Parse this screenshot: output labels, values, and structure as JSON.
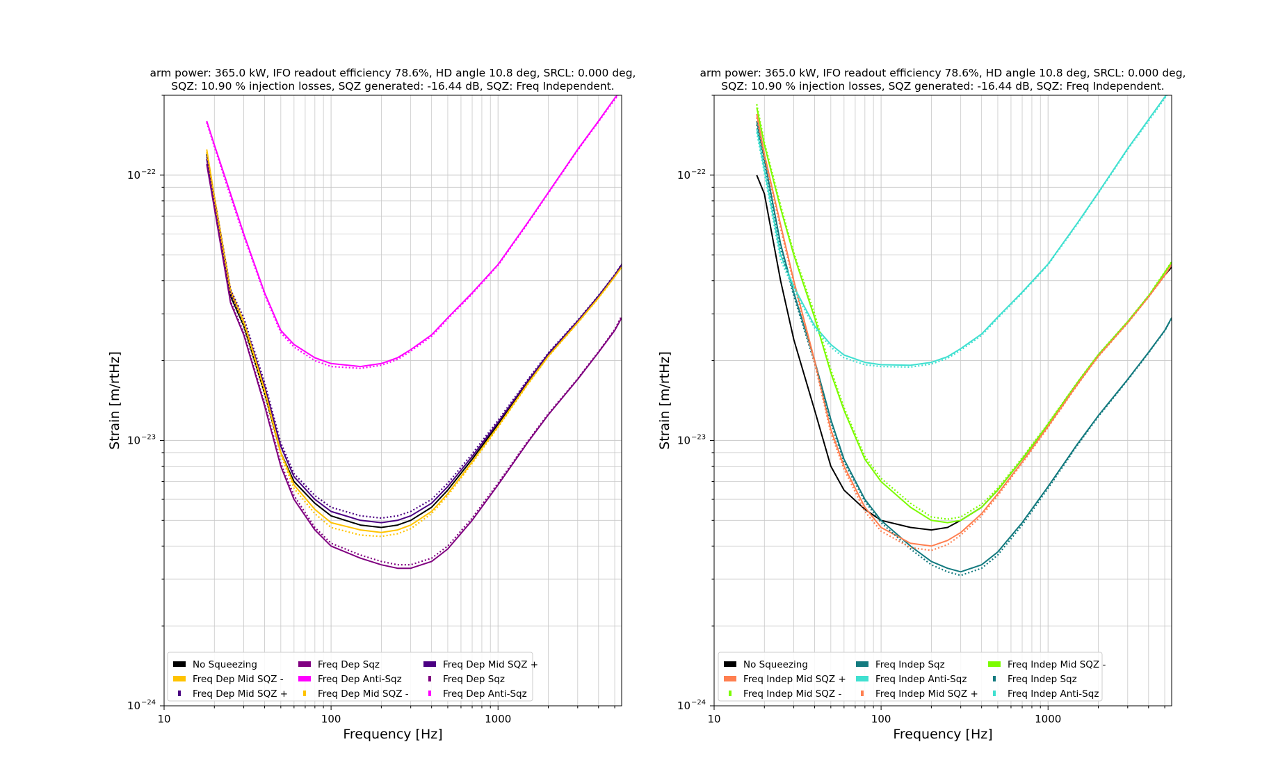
{
  "chart_data": [
    {
      "type": "line",
      "panel": "left",
      "title_line1": "arm power: 365.0 kW, IFO readout efficiency 78.6%, HD angle 10.8 deg, SRCL: 0.000 deg,",
      "title_line2": "SQZ: 10.90 % injection losses, SQZ generated: -16.44 dB, SQZ: Freq Independent.",
      "xlabel": "Frequency [Hz]",
      "ylabel": "Strain [m/rtHz]",
      "xscale": "log",
      "yscale": "log",
      "xlim": [
        10,
        5500
      ],
      "ylim": [
        1e-24,
        2e-22
      ],
      "x_ticks": [
        {
          "value": 10,
          "label": "10"
        },
        {
          "value": 100,
          "label": "100"
        },
        {
          "value": 1000,
          "label": "1000"
        }
      ],
      "y_ticks": [
        {
          "value": 1e-24,
          "label": "10",
          "exp": "−24"
        },
        {
          "value": 1e-23,
          "label": "10",
          "exp": "−23"
        },
        {
          "value": 1e-22,
          "label": "10",
          "exp": "−22"
        }
      ],
      "grid": true,
      "legend_position": "lower-left",
      "legend_columns": 3,
      "x_points": [
        18,
        20,
        25,
        30,
        40,
        50,
        60,
        80,
        100,
        150,
        200,
        250,
        300,
        400,
        500,
        700,
        1000,
        1500,
        2000,
        3000,
        4000,
        5000,
        5500
      ],
      "series": [
        {
          "name": "No Squeezing",
          "color": "#000000",
          "style": "solid",
          "legend_marker": "bar",
          "values": [
            1.2e-22,
            8e-23,
            3.5e-23,
            2.7e-23,
            1.5e-23,
            9e-24,
            7e-24,
            5.8e-24,
            5.2e-24,
            4.8e-24,
            4.7e-24,
            4.8e-24,
            5e-24,
            5.6e-24,
            6.5e-24,
            8.5e-24,
            1.15e-23,
            1.65e-23,
            2.1e-23,
            2.8e-23,
            3.5e-23,
            4.2e-23,
            4.5e-23
          ]
        },
        {
          "name": "Freq Dep Sqz",
          "color": "#800080",
          "style": "solid",
          "legend_marker": "bar",
          "values": [
            1.1e-22,
            7.5e-23,
            3.3e-23,
            2.5e-23,
            1.35e-23,
            8e-24,
            6e-24,
            4.6e-24,
            4e-24,
            3.6e-24,
            3.4e-24,
            3.3e-24,
            3.3e-24,
            3.5e-24,
            3.9e-24,
            5e-24,
            6.8e-24,
            9.8e-24,
            1.25e-23,
            1.7e-23,
            2.15e-23,
            2.6e-23,
            2.9e-23
          ]
        },
        {
          "name": "Freq Dep Mid SQZ +",
          "color": "#4b0082",
          "style": "solid",
          "legend_marker": "bar",
          "values": [
            1.15e-22,
            8e-23,
            3.6e-23,
            2.8e-23,
            1.6e-23,
            9.5e-24,
            7.3e-24,
            6e-24,
            5.4e-24,
            5e-24,
            4.9e-24,
            5e-24,
            5.2e-24,
            5.8e-24,
            6.7e-24,
            8.7e-24,
            1.17e-23,
            1.67e-23,
            2.12e-23,
            2.82e-23,
            3.5e-23,
            4.2e-23,
            4.6e-23
          ]
        },
        {
          "name": "Freq Dep Mid SQZ -",
          "color": "#ffc300",
          "style": "solid",
          "legend_marker": "bar",
          "values": [
            1.25e-22,
            8.3e-23,
            3.7e-23,
            2.8e-23,
            1.55e-23,
            9e-24,
            6.8e-24,
            5.5e-24,
            4.9e-24,
            4.6e-24,
            4.5e-24,
            4.6e-24,
            4.8e-24,
            5.4e-24,
            6.3e-24,
            8.3e-24,
            1.13e-23,
            1.63e-23,
            2.08e-23,
            2.78e-23,
            3.45e-23,
            4.15e-23,
            4.5e-23
          ]
        },
        {
          "name": "Freq Dep Anti-Sqz",
          "color": "#ff00ff",
          "style": "solid",
          "legend_marker": "bar",
          "values": [
            1.6e-22,
            1.3e-22,
            8.5e-23,
            6e-23,
            3.6e-23,
            2.6e-23,
            2.3e-23,
            2.05e-23,
            1.95e-23,
            1.9e-23,
            1.95e-23,
            2.05e-23,
            2.2e-23,
            2.5e-23,
            2.9e-23,
            3.6e-23,
            4.6e-23,
            6.6e-23,
            8.6e-23,
            1.25e-22,
            1.6e-22,
            1.95e-22,
            2.1e-22
          ]
        },
        {
          "name": "Freq Dep Sqz",
          "color": "#800080",
          "style": "dotted",
          "legend_marker": "dot",
          "values": [
            1.15e-22,
            7.8e-23,
            3.35e-23,
            2.55e-23,
            1.38e-23,
            8.2e-24,
            6.2e-24,
            4.7e-24,
            4.1e-24,
            3.7e-24,
            3.5e-24,
            3.4e-24,
            3.4e-24,
            3.6e-24,
            4e-24,
            5.1e-24,
            6.9e-24,
            9.9e-24,
            1.26e-23,
            1.71e-23,
            2.16e-23,
            2.62e-23,
            2.95e-23
          ]
        },
        {
          "name": "Freq Dep Mid SQZ +",
          "color": "#4b0082",
          "style": "dotted",
          "legend_marker": "dot",
          "values": [
            1.18e-22,
            8.2e-23,
            3.7e-23,
            2.9e-23,
            1.65e-23,
            9.8e-24,
            7.5e-24,
            6.2e-24,
            5.6e-24,
            5.2e-24,
            5.1e-24,
            5.2e-24,
            5.4e-24,
            6e-24,
            6.9e-24,
            8.9e-24,
            1.19e-23,
            1.69e-23,
            2.14e-23,
            2.84e-23,
            3.52e-23,
            4.22e-23,
            4.62e-23
          ]
        },
        {
          "name": "Freq Dep Mid SQZ -",
          "color": "#ffc300",
          "style": "dotted",
          "legend_marker": "dot",
          "values": [
            1.22e-22,
            8.1e-23,
            3.6e-23,
            2.75e-23,
            1.5e-23,
            8.8e-24,
            6.6e-24,
            5.3e-24,
            4.7e-24,
            4.4e-24,
            4.35e-24,
            4.45e-24,
            4.65e-24,
            5.3e-24,
            6.2e-24,
            8.2e-24,
            1.12e-23,
            1.62e-23,
            2.07e-23,
            2.77e-23,
            3.44e-23,
            4.14e-23,
            4.48e-23
          ]
        },
        {
          "name": "Freq Dep Anti-Sqz",
          "color": "#ff00ff",
          "style": "dotted",
          "legend_marker": "dot",
          "values": [
            1.58e-22,
            1.28e-22,
            8.3e-23,
            5.9e-23,
            3.55e-23,
            2.55e-23,
            2.25e-23,
            2e-23,
            1.9e-23,
            1.87e-23,
            1.92e-23,
            2.02e-23,
            2.17e-23,
            2.47e-23,
            2.87e-23,
            3.57e-23,
            4.57e-23,
            6.55e-23,
            8.55e-23,
            1.24e-22,
            1.59e-22,
            1.93e-22,
            2.08e-22
          ]
        }
      ],
      "legend_order": [
        0,
        3,
        6,
        1,
        4,
        7,
        2,
        5,
        8
      ]
    },
    {
      "type": "line",
      "panel": "right",
      "title_line1": "arm power: 365.0 kW, IFO readout efficiency 78.6%, HD angle 10.8 deg, SRCL: 0.000 deg,",
      "title_line2": "SQZ: 10.90 % injection losses, SQZ generated: -16.44 dB, SQZ: Freq Independent.",
      "xlabel": "Frequency [Hz]",
      "ylabel": "Strain [m/rtHz]",
      "xscale": "log",
      "yscale": "log",
      "xlim": [
        10,
        5500
      ],
      "ylim": [
        1e-24,
        2e-22
      ],
      "x_ticks": [
        {
          "value": 10,
          "label": "10"
        },
        {
          "value": 100,
          "label": "100"
        },
        {
          "value": 1000,
          "label": "1000"
        }
      ],
      "y_ticks": [
        {
          "value": 1e-24,
          "label": "10",
          "exp": "−24"
        },
        {
          "value": 1e-23,
          "label": "10",
          "exp": "−23"
        },
        {
          "value": 1e-22,
          "label": "10",
          "exp": "−22"
        }
      ],
      "grid": true,
      "legend_position": "lower-left",
      "legend_columns": 3,
      "x_points": [
        18,
        20,
        25,
        30,
        40,
        50,
        60,
        80,
        100,
        150,
        200,
        250,
        300,
        400,
        500,
        700,
        1000,
        1500,
        2000,
        3000,
        4000,
        5000,
        5500
      ],
      "series": [
        {
          "name": "No Squeezing",
          "color": "#000000",
          "style": "solid",
          "legend_marker": "bar",
          "values": [
            1e-22,
            8.5e-23,
            4e-23,
            2.4e-23,
            1.3e-23,
            8e-24,
            6.5e-24,
            5.5e-24,
            5e-24,
            4.7e-24,
            4.6e-24,
            4.7e-24,
            5e-24,
            5.6e-24,
            6.5e-24,
            8.5e-24,
            1.15e-23,
            1.65e-23,
            2.1e-23,
            2.8e-23,
            3.5e-23,
            4.2e-23,
            4.5e-23
          ]
        },
        {
          "name": "Freq Indep Sqz",
          "color": "#137a7f",
          "style": "solid",
          "legend_marker": "bar",
          "values": [
            1.6e-22,
            1.15e-22,
            5.5e-23,
            3.6e-23,
            2e-23,
            1.2e-23,
            8.5e-24,
            6e-24,
            5e-24,
            4e-24,
            3.5e-24,
            3.3e-24,
            3.2e-24,
            3.4e-24,
            3.8e-24,
            4.9e-24,
            6.7e-24,
            9.7e-24,
            1.24e-23,
            1.7e-23,
            2.15e-23,
            2.6e-23,
            2.9e-23
          ]
        },
        {
          "name": "Freq Indep Mid SQZ -",
          "color": "#7cfc00",
          "style": "solid",
          "legend_marker": "bar",
          "values": [
            1.8e-22,
            1.3e-22,
            7.5e-23,
            5e-23,
            2.9e-23,
            1.8e-23,
            1.3e-23,
            8.5e-24,
            7e-24,
            5.6e-24,
            5e-24,
            4.9e-24,
            5e-24,
            5.6e-24,
            6.5e-24,
            8.5e-24,
            1.15e-23,
            1.65e-23,
            2.1e-23,
            2.8e-23,
            3.5e-23,
            4.3e-23,
            4.7e-23
          ]
        },
        {
          "name": "Freq Indep Mid SQZ +",
          "color": "#ff7f50",
          "style": "solid",
          "legend_marker": "bar",
          "values": [
            1.7e-22,
            1.2e-22,
            6.5e-23,
            4e-23,
            2e-23,
            1.1e-23,
            8e-24,
            5.6e-24,
            4.7e-24,
            4.1e-24,
            4e-24,
            4.2e-24,
            4.5e-24,
            5.3e-24,
            6.3e-24,
            8.3e-24,
            1.13e-23,
            1.63e-23,
            2.08e-23,
            2.78e-23,
            3.48e-23,
            4.2e-23,
            4.6e-23
          ]
        },
        {
          "name": "Freq Indep Anti-Sqz",
          "color": "#40e0d0",
          "style": "solid",
          "legend_marker": "bar",
          "values": [
            1.5e-22,
            1.05e-22,
            5e-23,
            3.8e-23,
            2.7e-23,
            2.3e-23,
            2.1e-23,
            1.97e-23,
            1.93e-23,
            1.92e-23,
            1.97e-23,
            2.07e-23,
            2.22e-23,
            2.52e-23,
            2.92e-23,
            3.62e-23,
            4.62e-23,
            6.6e-23,
            8.6e-23,
            1.26e-22,
            1.62e-22,
            1.97e-22,
            2.12e-22
          ]
        },
        {
          "name": "Freq Indep Sqz",
          "color": "#137a7f",
          "style": "dotted",
          "legend_marker": "dot",
          "values": [
            1.55e-22,
            1.12e-22,
            5.3e-23,
            3.5e-23,
            1.95e-23,
            1.17e-23,
            8.3e-24,
            5.9e-24,
            4.9e-24,
            3.9e-24,
            3.4e-24,
            3.2e-24,
            3.1e-24,
            3.3e-24,
            3.7e-24,
            4.8e-24,
            6.6e-24,
            9.6e-24,
            1.23e-23,
            1.69e-23,
            2.14e-23,
            2.59e-23,
            2.88e-23
          ]
        },
        {
          "name": "Freq Indep Mid SQZ -",
          "color": "#7cfc00",
          "style": "dotted",
          "legend_marker": "dot",
          "values": [
            1.85e-22,
            1.33e-22,
            7.7e-23,
            5.1e-23,
            3e-23,
            1.85e-23,
            1.33e-23,
            8.7e-24,
            7.2e-24,
            5.8e-24,
            5.15e-24,
            5.05e-24,
            5.15e-24,
            5.75e-24,
            6.6e-24,
            8.6e-24,
            1.16e-23,
            1.66e-23,
            2.11e-23,
            2.81e-23,
            3.52e-23,
            4.32e-23,
            4.72e-23
          ]
        },
        {
          "name": "Freq Indep Mid SQZ +",
          "color": "#ff7f50",
          "style": "dotted",
          "legend_marker": "dot",
          "values": [
            1.65e-22,
            1.17e-22,
            6.3e-23,
            3.9e-23,
            1.95e-23,
            1.07e-23,
            7.8e-24,
            5.4e-24,
            4.55e-24,
            3.95e-24,
            3.85e-24,
            4.05e-24,
            4.4e-24,
            5.2e-24,
            6.2e-24,
            8.2e-24,
            1.12e-23,
            1.62e-23,
            2.07e-23,
            2.77e-23,
            3.47e-23,
            4.18e-23,
            4.58e-23
          ]
        },
        {
          "name": "Freq Indep Anti-Sqz",
          "color": "#40e0d0",
          "style": "dotted",
          "legend_marker": "dot",
          "values": [
            1.45e-22,
            1.02e-22,
            4.8e-23,
            3.7e-23,
            2.65e-23,
            2.25e-23,
            2.05e-23,
            1.93e-23,
            1.9e-23,
            1.89e-23,
            1.94e-23,
            2.04e-23,
            2.19e-23,
            2.49e-23,
            2.89e-23,
            3.59e-23,
            4.59e-23,
            6.55e-23,
            8.55e-23,
            1.25e-22,
            1.6e-22,
            1.95e-22,
            2.1e-22
          ]
        }
      ],
      "legend_order": [
        0,
        3,
        6,
        1,
        4,
        7,
        2,
        5,
        8
      ]
    }
  ]
}
